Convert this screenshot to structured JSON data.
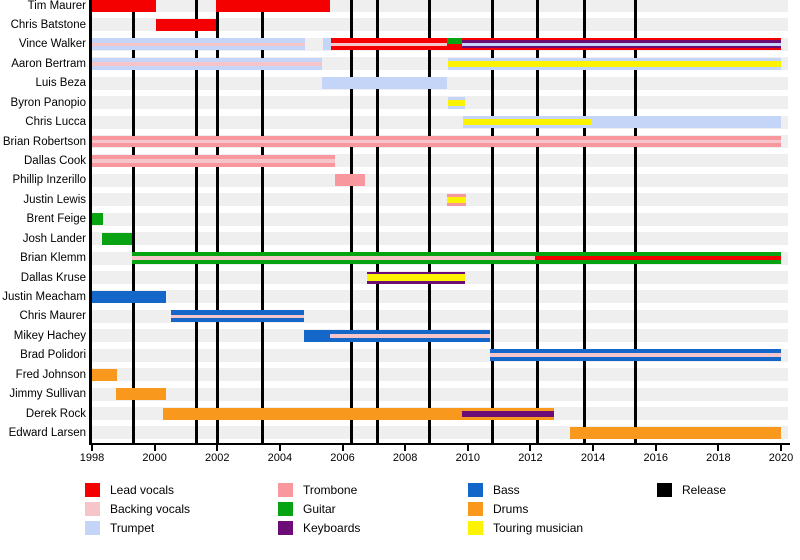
{
  "chart_data": {
    "type": "timeline",
    "x_axis": {
      "min": 1998,
      "max": 2020,
      "tick_years": [
        1998,
        2000,
        2002,
        2004,
        2006,
        2008,
        2010,
        2012,
        2014,
        2016,
        2018,
        2020
      ]
    },
    "role_colors": {
      "lead": "#f40000",
      "backing": "#f6c5ca",
      "trumpet": "#c5d5f7",
      "trombone": "#f8979e",
      "guitar": "#07a312",
      "keyboards": "#6c0d77",
      "bass": "#1467c8",
      "drums": "#f8991d",
      "touring": "#fbf300",
      "release": "#000000"
    },
    "releases": [
      1999.31,
      2001.35,
      2002.02,
      2003.43,
      2006.3,
      2007.13,
      2008.79,
      2010.8,
      2012.21,
      2013.74,
      2015.34
    ],
    "members": [
      {
        "name": "Tim Maurer",
        "segments": [
          {
            "start": 1998,
            "end": 2000.05,
            "stripes": [
              [
                "lead",
                100
              ]
            ]
          },
          {
            "start": 2001.95,
            "end": 2005.6,
            "stripes": [
              [
                "lead",
                100
              ]
            ]
          }
        ]
      },
      {
        "name": "Chris Batstone",
        "segments": [
          {
            "start": 2000.05,
            "end": 2001.95,
            "stripes": [
              [
                "lead",
                100
              ]
            ]
          }
        ]
      },
      {
        "name": "Vince Walker",
        "segments": [
          {
            "start": 1998,
            "end": 2004.8,
            "stripes": [
              [
                "trumpet",
                35
              ],
              [
                "backing",
                30
              ],
              [
                "trumpet",
                35
              ]
            ]
          },
          {
            "start": 2005.38,
            "end": 2005.62,
            "stripes": [
              [
                "trumpet",
                100
              ]
            ]
          },
          {
            "start": 2005.62,
            "end": 2009.33,
            "stripes": [
              [
                "lead",
                40
              ],
              [
                "backing",
                20
              ],
              [
                "lead",
                40
              ]
            ]
          },
          {
            "start": 2009.33,
            "end": 2009.81,
            "stripes": [
              [
                "guitar",
                50
              ],
              [
                "lead",
                50
              ]
            ]
          },
          {
            "start": 2009.81,
            "end": 2020,
            "stripes": [
              [
                "lead",
                16
              ],
              [
                "keyboards",
                20
              ],
              [
                "trumpet",
                28
              ],
              [
                "keyboards",
                20
              ],
              [
                "lead",
                16
              ]
            ]
          }
        ]
      },
      {
        "name": "Aaron Bertram",
        "segments": [
          {
            "start": 1998,
            "end": 2005.34,
            "stripes": [
              [
                "trumpet",
                35
              ],
              [
                "backing",
                30
              ],
              [
                "trumpet",
                35
              ]
            ]
          },
          {
            "start": 2009.37,
            "end": 2020,
            "stripes": [
              [
                "trumpet",
                25
              ],
              [
                "touring",
                50
              ],
              [
                "trumpet",
                25
              ]
            ]
          }
        ]
      },
      {
        "name": "Luis Beza",
        "segments": [
          {
            "start": 2005.34,
            "end": 2009.33,
            "stripes": [
              [
                "trumpet",
                100
              ]
            ]
          }
        ]
      },
      {
        "name": "Byron Panopio",
        "segments": [
          {
            "start": 2009.37,
            "end": 2009.91,
            "stripes": [
              [
                "trumpet",
                25
              ],
              [
                "touring",
                50
              ],
              [
                "trumpet",
                25
              ]
            ]
          }
        ]
      },
      {
        "name": "Chris Lucca",
        "segments": [
          {
            "start": 2009.85,
            "end": 2013.97,
            "stripes": [
              [
                "trumpet",
                25
              ],
              [
                "touring",
                50
              ],
              [
                "trumpet",
                25
              ]
            ]
          },
          {
            "start": 2013.97,
            "end": 2020,
            "stripes": [
              [
                "trumpet",
                100
              ]
            ]
          }
        ]
      },
      {
        "name": "Brian Robertson",
        "segments": [
          {
            "start": 1998,
            "end": 2020,
            "stripes": [
              [
                "trombone",
                36
              ],
              [
                "backing",
                28
              ],
              [
                "trombone",
                36
              ]
            ]
          }
        ]
      },
      {
        "name": "Dallas Cook",
        "segments": [
          {
            "start": 1998,
            "end": 2005.76,
            "stripes": [
              [
                "trombone",
                36
              ],
              [
                "backing",
                28
              ],
              [
                "trombone",
                36
              ]
            ]
          }
        ]
      },
      {
        "name": "Phillip Inzerillo",
        "segments": [
          {
            "start": 2005.76,
            "end": 2006.72,
            "stripes": [
              [
                "trombone",
                100
              ]
            ]
          }
        ]
      },
      {
        "name": "Justin Lewis",
        "segments": [
          {
            "start": 2009.33,
            "end": 2009.94,
            "stripes": [
              [
                "trombone",
                25
              ],
              [
                "touring",
                50
              ],
              [
                "trombone",
                25
              ]
            ]
          }
        ]
      },
      {
        "name": "Brent Feige",
        "segments": [
          {
            "start": 1998,
            "end": 1998.35,
            "stripes": [
              [
                "guitar",
                100
              ]
            ]
          }
        ]
      },
      {
        "name": "Josh Lander",
        "segments": [
          {
            "start": 1998.32,
            "end": 1999.28,
            "stripes": [
              [
                "guitar",
                100
              ]
            ]
          }
        ]
      },
      {
        "name": "Brian Klemm",
        "segments": [
          {
            "start": 1999.28,
            "end": 2012.15,
            "stripes": [
              [
                "guitar",
                35
              ],
              [
                "backing",
                30
              ],
              [
                "guitar",
                35
              ]
            ]
          },
          {
            "start": 2012.15,
            "end": 2020,
            "stripes": [
              [
                "guitar",
                35
              ],
              [
                "lead",
                30
              ],
              [
                "guitar",
                35
              ]
            ]
          }
        ]
      },
      {
        "name": "Dallas Kruse",
        "segments": [
          {
            "start": 2006.78,
            "end": 2009.91,
            "stripes": [
              [
                "keyboards",
                22
              ],
              [
                "touring",
                56
              ],
              [
                "keyboards",
                22
              ]
            ]
          }
        ]
      },
      {
        "name": "Justin Meacham",
        "segments": [
          {
            "start": 1998,
            "end": 2000.36,
            "stripes": [
              [
                "bass",
                100
              ]
            ]
          }
        ]
      },
      {
        "name": "Chris Maurer",
        "segments": [
          {
            "start": 2000.52,
            "end": 2004.77,
            "stripes": [
              [
                "bass",
                35
              ],
              [
                "backing",
                30
              ],
              [
                "bass",
                35
              ]
            ]
          }
        ]
      },
      {
        "name": "Mikey Hachey",
        "segments": [
          {
            "start": 2004.77,
            "end": 2005.6,
            "stripes": [
              [
                "bass",
                100
              ]
            ]
          },
          {
            "start": 2005.6,
            "end": 2010.71,
            "stripes": [
              [
                "bass",
                35
              ],
              [
                "backing",
                30
              ],
              [
                "bass",
                35
              ]
            ]
          }
        ]
      },
      {
        "name": "Brad Polidori",
        "segments": [
          {
            "start": 2010.71,
            "end": 2020,
            "stripes": [
              [
                "bass",
                35
              ],
              [
                "backing",
                30
              ],
              [
                "bass",
                35
              ]
            ]
          }
        ]
      },
      {
        "name": "Fred Johnson",
        "segments": [
          {
            "start": 1998,
            "end": 1998.8,
            "stripes": [
              [
                "drums",
                100
              ]
            ]
          }
        ]
      },
      {
        "name": "Jimmy Sullivan",
        "segments": [
          {
            "start": 1998.77,
            "end": 2000.36,
            "stripes": [
              [
                "drums",
                100
              ]
            ]
          }
        ]
      },
      {
        "name": "Derek Rock",
        "segments": [
          {
            "start": 2000.27,
            "end": 2009.81,
            "stripes": [
              [
                "drums",
                100
              ]
            ]
          },
          {
            "start": 2009.81,
            "end": 2012.75,
            "stripes": [
              [
                "drums",
                25
              ],
              [
                "keyboards",
                50
              ],
              [
                "drums",
                25
              ]
            ]
          }
        ]
      },
      {
        "name": "Edward Larsen",
        "segments": [
          {
            "start": 2013.26,
            "end": 2020,
            "stripes": [
              [
                "drums",
                100
              ]
            ]
          }
        ]
      }
    ],
    "legend_columns": [
      [
        {
          "label": "Lead vocals",
          "role": "lead"
        },
        {
          "label": "Backing vocals",
          "role": "backing"
        },
        {
          "label": "Trumpet",
          "role": "trumpet"
        }
      ],
      [
        {
          "label": "Trombone",
          "role": "trombone"
        },
        {
          "label": "Guitar",
          "role": "guitar"
        },
        {
          "label": "Keyboards",
          "role": "keyboards"
        }
      ],
      [
        {
          "label": "Bass",
          "role": "bass"
        },
        {
          "label": "Drums",
          "role": "drums"
        },
        {
          "label": "Touring musician",
          "role": "touring"
        }
      ],
      [
        {
          "label": "Release",
          "role": "release"
        }
      ]
    ]
  }
}
